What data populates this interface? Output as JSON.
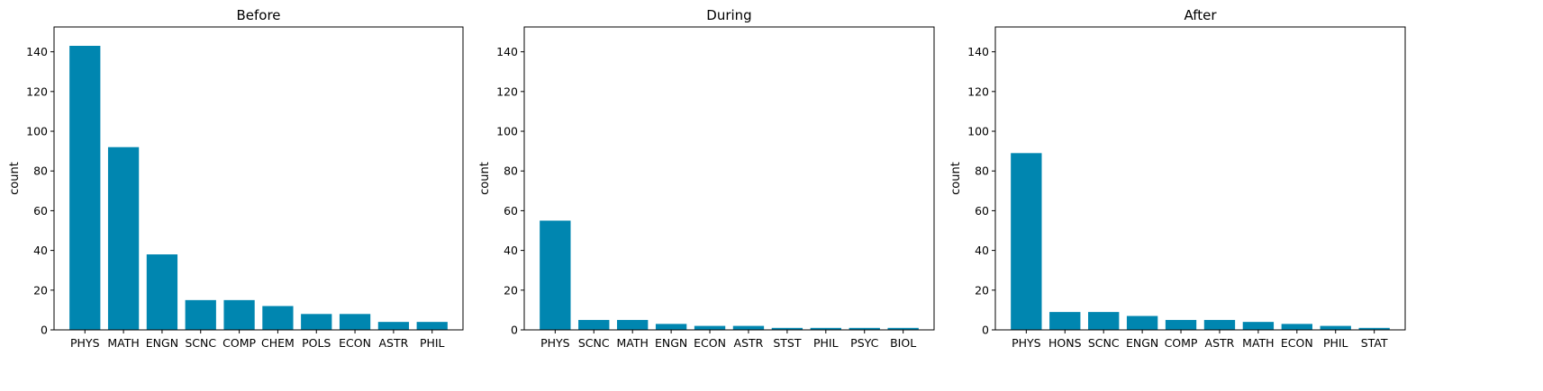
{
  "chart_data": [
    {
      "type": "bar",
      "title": "Before",
      "xlabel": "",
      "ylabel": "count",
      "ylim": [
        0,
        152.5
      ],
      "yticks": [
        0,
        20,
        40,
        60,
        80,
        100,
        120,
        140
      ],
      "categories": [
        "PHYS",
        "MATH",
        "ENGN",
        "SCNC",
        "COMP",
        "CHEM",
        "POLS",
        "ECON",
        "ASTR",
        "PHIL"
      ],
      "values": [
        143,
        92,
        38,
        15,
        15,
        12,
        8,
        8,
        4,
        4
      ],
      "color": "#0086b0"
    },
    {
      "type": "bar",
      "title": "During",
      "xlabel": "",
      "ylabel": "count",
      "ylim": [
        0,
        152.5
      ],
      "yticks": [
        0,
        20,
        40,
        60,
        80,
        100,
        120,
        140
      ],
      "categories": [
        "PHYS",
        "SCNC",
        "MATH",
        "ENGN",
        "ECON",
        "ASTR",
        "STST",
        "PHIL",
        "PSYC",
        "BIOL"
      ],
      "values": [
        55,
        5,
        5,
        3,
        2,
        2,
        1,
        1,
        1,
        1
      ],
      "color": "#0086b0"
    },
    {
      "type": "bar",
      "title": "After",
      "xlabel": "",
      "ylabel": "count",
      "ylim": [
        0,
        152.5
      ],
      "yticks": [
        0,
        20,
        40,
        60,
        80,
        100,
        120,
        140
      ],
      "categories": [
        "PHYS",
        "HONS",
        "SCNC",
        "ENGN",
        "COMP",
        "ASTR",
        "MATH",
        "ECON",
        "PHIL",
        "STAT"
      ],
      "values": [
        89,
        9,
        9,
        7,
        5,
        5,
        4,
        3,
        2,
        1
      ],
      "color": "#0086b0"
    }
  ]
}
